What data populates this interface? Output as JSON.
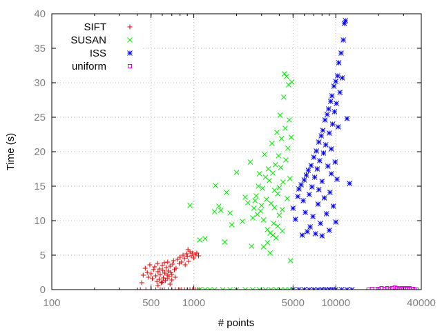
{
  "chart_data": {
    "type": "scatter",
    "xlabel": "# points",
    "ylabel": "Time (s)",
    "xscale": "log",
    "xlim": [
      100,
      40000
    ],
    "ylim": [
      0,
      40
    ],
    "xticks": [
      100,
      500,
      1000,
      5000,
      10000,
      40000
    ],
    "xtick_labels": [
      "100",
      "500",
      "1000",
      "5000",
      "10000",
      "40000"
    ],
    "yticks": [
      0,
      5,
      10,
      15,
      20,
      25,
      30,
      35,
      40
    ],
    "ytick_labels": [
      "0",
      "5",
      "10",
      "15",
      "20",
      "25",
      "30",
      "35",
      "40"
    ],
    "grid": true,
    "legend_position": "top-left",
    "series": [
      {
        "name": "SIFT",
        "marker": "plus",
        "color": "#dd0000",
        "points": [
          [
            430,
            1.0
          ],
          [
            440,
            2.1
          ],
          [
            455,
            3.1
          ],
          [
            470,
            2.5
          ],
          [
            480,
            1.8
          ],
          [
            490,
            3.6
          ],
          [
            500,
            2.3
          ],
          [
            510,
            1.6
          ],
          [
            520,
            2.9
          ],
          [
            530,
            3.3
          ],
          [
            540,
            2.0
          ],
          [
            550,
            1.2
          ],
          [
            555,
            3.8
          ],
          [
            560,
            2.6
          ],
          [
            570,
            1.5
          ],
          [
            575,
            3.0
          ],
          [
            580,
            2.2
          ],
          [
            590,
            1.0
          ],
          [
            600,
            3.5
          ],
          [
            605,
            2.8
          ],
          [
            610,
            1.7
          ],
          [
            620,
            3.9
          ],
          [
            625,
            2.4
          ],
          [
            630,
            1.3
          ],
          [
            640,
            3.2
          ],
          [
            650,
            2.1
          ],
          [
            655,
            4.0
          ],
          [
            660,
            2.7
          ],
          [
            670,
            1.9
          ],
          [
            680,
            3.4
          ],
          [
            690,
            2.5
          ],
          [
            700,
            1.4
          ],
          [
            710,
            3.7
          ],
          [
            720,
            4.2
          ],
          [
            730,
            2.9
          ],
          [
            750,
            3.1
          ],
          [
            770,
            4.4
          ],
          [
            790,
            3.8
          ],
          [
            800,
            4.7
          ],
          [
            820,
            4.0
          ],
          [
            840,
            5.0
          ],
          [
            860,
            4.5
          ],
          [
            870,
            3.6
          ],
          [
            890,
            5.2
          ],
          [
            900,
            4.8
          ],
          [
            910,
            5.8
          ],
          [
            920,
            4.1
          ],
          [
            940,
            5.5
          ],
          [
            960,
            4.9
          ],
          [
            980,
            5.3
          ],
          [
            1000,
            4.6
          ],
          [
            1020,
            5.1
          ],
          [
            1050,
            5.3
          ],
          [
            1080,
            4.9
          ],
          [
            600,
            1.1
          ],
          [
            650,
            1.6
          ],
          [
            700,
            2.2
          ],
          [
            740,
            1.8
          ],
          [
            680,
            0.8
          ],
          [
            560,
            0.6
          ],
          [
            420,
            0.0
          ],
          [
            460,
            0.0
          ],
          [
            500,
            0.0
          ],
          [
            540,
            0.0
          ],
          [
            580,
            0.0
          ],
          [
            620,
            0.0
          ],
          [
            660,
            0.0
          ],
          [
            700,
            0.0
          ],
          [
            740,
            0.0
          ],
          [
            780,
            0.0
          ],
          [
            820,
            0.0
          ],
          [
            860,
            0.0
          ],
          [
            900,
            0.0
          ],
          [
            940,
            0.0
          ],
          [
            980,
            0.0
          ],
          [
            1020,
            0.0
          ],
          [
            1060,
            0.0
          ],
          [
            1100,
            0.0
          ]
        ]
      },
      {
        "name": "SUSAN",
        "marker": "cross",
        "color": "#00ee00",
        "points": [
          [
            940,
            12.2
          ],
          [
            1100,
            7.2
          ],
          [
            1200,
            7.4
          ],
          [
            1400,
            11.3
          ],
          [
            1420,
            15.1
          ],
          [
            1500,
            12.1
          ],
          [
            1550,
            11.5
          ],
          [
            1650,
            6.9
          ],
          [
            1700,
            14.1
          ],
          [
            1800,
            11.1
          ],
          [
            1850,
            9.4
          ],
          [
            2000,
            17.0
          ],
          [
            2200,
            9.9
          ],
          [
            2300,
            13.4
          ],
          [
            2400,
            12.6
          ],
          [
            2500,
            18.5
          ],
          [
            2550,
            6.3
          ],
          [
            2600,
            10.4
          ],
          [
            2650,
            11.8
          ],
          [
            2700,
            12.9
          ],
          [
            2750,
            13.6
          ],
          [
            2800,
            10.9
          ],
          [
            2850,
            15.0
          ],
          [
            2900,
            16.8
          ],
          [
            2950,
            11.4
          ],
          [
            3000,
            12.2
          ],
          [
            3050,
            14.7
          ],
          [
            3100,
            10.1
          ],
          [
            3150,
            19.6
          ],
          [
            3200,
            16.3
          ],
          [
            3250,
            13.1
          ],
          [
            3300,
            6.8
          ],
          [
            3350,
            17.5
          ],
          [
            3400,
            15.8
          ],
          [
            3450,
            8.2
          ],
          [
            3500,
            12.5
          ],
          [
            3550,
            21.2
          ],
          [
            3600,
            16.9
          ],
          [
            3650,
            9.6
          ],
          [
            3700,
            14.4
          ],
          [
            3750,
            18.1
          ],
          [
            3800,
            7.5
          ],
          [
            3850,
            22.8
          ],
          [
            3900,
            13.9
          ],
          [
            3950,
            19.4
          ],
          [
            4000,
            10.8
          ],
          [
            4050,
            25.3
          ],
          [
            4100,
            17.7
          ],
          [
            4150,
            21.9
          ],
          [
            4200,
            11.6
          ],
          [
            4250,
            15.6
          ],
          [
            4300,
            27.9
          ],
          [
            4350,
            31.3
          ],
          [
            4400,
            23.4
          ],
          [
            4450,
            18.8
          ],
          [
            4500,
            30.9
          ],
          [
            4550,
            13.2
          ],
          [
            4600,
            20.5
          ],
          [
            4650,
            29.7
          ],
          [
            4700,
            24.6
          ],
          [
            4750,
            16.1
          ],
          [
            4800,
            4.2
          ],
          [
            4850,
            22.1
          ],
          [
            4900,
            30.1
          ],
          [
            3300,
            8.7
          ],
          [
            3600,
            7.9
          ],
          [
            3900,
            9.2
          ],
          [
            4200,
            8.5
          ],
          [
            3700,
            11.9
          ],
          [
            4000,
            14.8
          ],
          [
            3100,
            6.2
          ],
          [
            3450,
            5.3
          ],
          [
            1100,
            0.0
          ],
          [
            1200,
            0.0
          ],
          [
            1300,
            0.0
          ],
          [
            1400,
            0.0
          ],
          [
            1600,
            0.0
          ],
          [
            1800,
            0.0
          ],
          [
            2000,
            0.0
          ],
          [
            2300,
            0.0
          ],
          [
            2600,
            0.0
          ],
          [
            2900,
            0.0
          ],
          [
            3200,
            0.0
          ],
          [
            3500,
            0.0
          ],
          [
            3800,
            0.0
          ],
          [
            4100,
            0.0
          ],
          [
            4400,
            0.0
          ],
          [
            4700,
            0.0
          ],
          [
            5000,
            0.0
          ]
        ]
      },
      {
        "name": "ISS",
        "marker": "star",
        "color": "#0000ee",
        "points": [
          [
            5000,
            11.8
          ],
          [
            5200,
            10.2
          ],
          [
            5400,
            13.5
          ],
          [
            5500,
            14.6
          ],
          [
            5700,
            15.2
          ],
          [
            5800,
            7.9
          ],
          [
            5900,
            12.9
          ],
          [
            6000,
            15.9
          ],
          [
            6100,
            11.2
          ],
          [
            6200,
            16.6
          ],
          [
            6300,
            8.4
          ],
          [
            6400,
            17.3
          ],
          [
            6500,
            13.8
          ],
          [
            6600,
            9.1
          ],
          [
            6700,
            18.0
          ],
          [
            6800,
            14.9
          ],
          [
            6900,
            10.6
          ],
          [
            7000,
            19.2
          ],
          [
            7100,
            16.3
          ],
          [
            7200,
            8.1
          ],
          [
            7300,
            20.1
          ],
          [
            7400,
            17.5
          ],
          [
            7500,
            12.4
          ],
          [
            7600,
            21.4
          ],
          [
            7700,
            18.7
          ],
          [
            7800,
            9.6
          ],
          [
            7900,
            22.3
          ],
          [
            8000,
            15.7
          ],
          [
            8100,
            23.1
          ],
          [
            8200,
            19.8
          ],
          [
            8300,
            13.3
          ],
          [
            8400,
            24.6
          ],
          [
            8500,
            21.0
          ],
          [
            8600,
            11.0
          ],
          [
            8700,
            25.4
          ],
          [
            8800,
            17.9
          ],
          [
            8900,
            26.2
          ],
          [
            9000,
            22.7
          ],
          [
            9100,
            14.1
          ],
          [
            9200,
            27.3
          ],
          [
            9300,
            20.4
          ],
          [
            9400,
            28.1
          ],
          [
            9500,
            24.0
          ],
          [
            9600,
            12.1
          ],
          [
            9700,
            29.5
          ],
          [
            9800,
            25.8
          ],
          [
            9900,
            18.5
          ],
          [
            10000,
            30.2
          ],
          [
            10100,
            27.0
          ],
          [
            10200,
            16.0
          ],
          [
            10300,
            31.0
          ],
          [
            10400,
            23.6
          ],
          [
            10500,
            32.9
          ],
          [
            10700,
            28.6
          ],
          [
            10900,
            34.3
          ],
          [
            11100,
            30.7
          ],
          [
            11300,
            36.2
          ],
          [
            11500,
            38.6
          ],
          [
            11700,
            39.0
          ],
          [
            12000,
            24.8
          ],
          [
            12500,
            15.4
          ],
          [
            8000,
            7.8
          ],
          [
            9000,
            8.6
          ],
          [
            10000,
            9.8
          ],
          [
            7600,
            14.5
          ],
          [
            9300,
            16.8
          ],
          [
            5000,
            0.0
          ],
          [
            5500,
            0.0
          ],
          [
            6000,
            0.0
          ],
          [
            6500,
            0.0
          ],
          [
            7000,
            0.0
          ],
          [
            7500,
            0.0
          ],
          [
            8000,
            0.0
          ],
          [
            8500,
            0.0
          ],
          [
            9000,
            0.0
          ],
          [
            9500,
            0.0
          ],
          [
            10000,
            0.0
          ],
          [
            11000,
            0.0
          ],
          [
            12000,
            0.0
          ],
          [
            13000,
            0.0
          ]
        ]
      },
      {
        "name": "uniform",
        "marker": "square",
        "color": "#dd00dd",
        "points": [
          [
            17000,
            0.0
          ],
          [
            18000,
            0.1
          ],
          [
            19000,
            0.0
          ],
          [
            20000,
            0.1
          ],
          [
            21000,
            0.2
          ],
          [
            22000,
            0.1
          ],
          [
            23000,
            0.2
          ],
          [
            24000,
            0.1
          ],
          [
            25000,
            0.2
          ],
          [
            26000,
            0.3
          ],
          [
            27000,
            0.2
          ],
          [
            28000,
            0.1
          ],
          [
            29000,
            0.2
          ],
          [
            30000,
            0.1
          ],
          [
            31000,
            0.2
          ],
          [
            32000,
            0.1
          ],
          [
            33000,
            0.2
          ],
          [
            34000,
            0.1
          ],
          [
            35000,
            0.1
          ],
          [
            36000,
            0.0
          ],
          [
            37000,
            0.0
          ]
        ]
      }
    ]
  }
}
